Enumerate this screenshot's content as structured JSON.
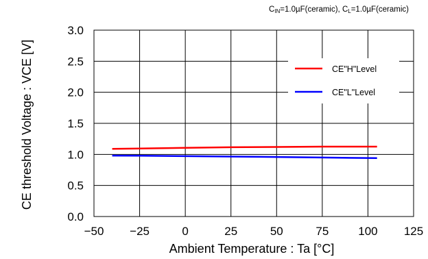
{
  "chart_data": {
    "type": "line",
    "title": "",
    "annotation": {
      "cin_main": "C",
      "cin_sub": "IN",
      "cin_rest": "=1.0µF(ceramic), ",
      "cl_main": "C",
      "cl_sub": "L",
      "cl_rest": "=1.0µF(ceramic)"
    },
    "xlabel": "Ambient Temperature : Ta [°C]",
    "ylabel": "CE threshold Voltage : VCE [V]",
    "xlim": [
      -50,
      125
    ],
    "ylim": [
      0.0,
      3.0
    ],
    "xticks": [
      "−50",
      "−25",
      "0",
      "25",
      "50",
      "75",
      "100",
      "125"
    ],
    "yticks": [
      "0.0",
      "0.5",
      "1.0",
      "1.5",
      "2.0",
      "2.5",
      "3.0"
    ],
    "grid": true,
    "legend_position": "top-right",
    "series": [
      {
        "name": "CE\"H\"Level",
        "color": "#ff0000",
        "points": [
          [
            -40,
            1.09
          ],
          [
            -25,
            1.095
          ],
          [
            0,
            1.105
          ],
          [
            25,
            1.115
          ],
          [
            50,
            1.12
          ],
          [
            75,
            1.125
          ],
          [
            105,
            1.125
          ]
        ]
      },
      {
        "name": "CE\"L\"Level",
        "color": "#0000ff",
        "points": [
          [
            -40,
            0.98
          ],
          [
            -25,
            0.978
          ],
          [
            0,
            0.972
          ],
          [
            25,
            0.965
          ],
          [
            50,
            0.958
          ],
          [
            75,
            0.95
          ],
          [
            105,
            0.94
          ]
        ]
      }
    ]
  }
}
